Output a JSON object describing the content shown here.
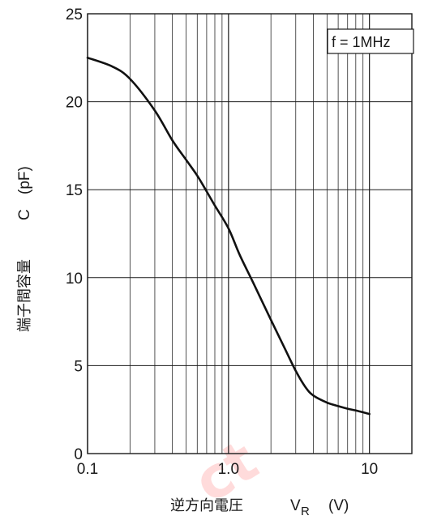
{
  "chart_data": {
    "type": "line",
    "title": "",
    "xlabel": "逆方向電圧",
    "xlabel_symbol": "V",
    "xlabel_subscript": "R",
    "xlabel_unit": "(V)",
    "ylabel": "端子間容量",
    "ylabel_symbol": "C",
    "ylabel_unit": "(pF)",
    "x_scale": "log",
    "xlim": [
      0.1,
      20
    ],
    "ylim": [
      0,
      25
    ],
    "x_ticks": [
      0.1,
      1.0,
      10
    ],
    "x_tick_labels": [
      "0.1",
      "1.0",
      "10"
    ],
    "y_ticks": [
      0,
      5,
      10,
      15,
      20,
      25
    ],
    "y_tick_labels": [
      "0",
      "5",
      "10",
      "15",
      "20",
      "25"
    ],
    "grid": true,
    "annotation": "f = 1MHz",
    "series": [
      {
        "x": [
          0.1,
          0.15,
          0.2,
          0.3,
          0.4,
          0.5,
          0.6,
          0.7,
          0.8,
          1.0,
          1.2,
          1.5,
          2.0,
          2.5,
          3.0,
          3.5,
          4.0,
          5.0,
          6.0,
          7.0,
          8.0,
          10.0
        ],
        "values": [
          22.5,
          22.0,
          21.3,
          19.5,
          17.8,
          16.7,
          15.8,
          14.9,
          14.1,
          12.8,
          11.3,
          9.7,
          7.6,
          6.0,
          4.7,
          3.8,
          3.3,
          2.9,
          2.7,
          2.55,
          2.45,
          2.25
        ],
        "color": "#111111"
      }
    ],
    "watermark_text": "ct"
  }
}
